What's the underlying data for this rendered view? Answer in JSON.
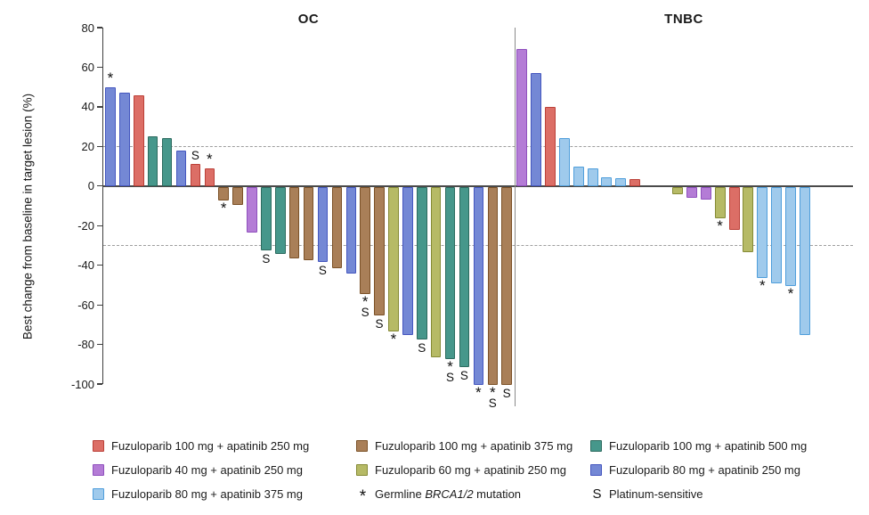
{
  "chart_data": {
    "type": "bar",
    "ylabel": "Best change from baseline in target lesion (%)",
    "ylim": [
      -100,
      80
    ],
    "yticks": [
      80,
      60,
      40,
      20,
      0,
      -20,
      -40,
      -60,
      -80,
      -100
    ],
    "reference_lines": [
      20,
      -30
    ],
    "grid": "off",
    "marker_meanings": {
      "*": "Germline BRCA1/2 mutation",
      "S": "Platinum-sensitive"
    },
    "colors": {
      "red": {
        "fill": "#dc6e66",
        "stroke": "#bb4038"
      },
      "purple": {
        "fill": "#b47cd6",
        "stroke": "#8f50bd"
      },
      "lightblue": {
        "fill": "#9fcaec",
        "stroke": "#4f9edb"
      },
      "brown": {
        "fill": "#a97f58",
        "stroke": "#7b5127"
      },
      "olive": {
        "fill": "#b6ba66",
        "stroke": "#858a35"
      },
      "teal": {
        "fill": "#46978b",
        "stroke": "#2c6b5f"
      },
      "periwinkle": {
        "fill": "#7488d5",
        "stroke": "#4456bf"
      }
    },
    "groups": [
      {
        "label": "OC",
        "bars": [
          {
            "v": 50,
            "c": "periwinkle",
            "a": "*"
          },
          {
            "v": 47,
            "c": "periwinkle"
          },
          {
            "v": 46,
            "c": "red"
          },
          {
            "v": 25,
            "c": "teal"
          },
          {
            "v": 24,
            "c": "teal"
          },
          {
            "v": 18,
            "c": "periwinkle"
          },
          {
            "v": 11,
            "c": "red",
            "a": "S"
          },
          {
            "v": 9,
            "c": "red",
            "a": "*"
          },
          {
            "v": -7,
            "c": "brown",
            "a": "*"
          },
          {
            "v": -9,
            "c": "brown"
          },
          {
            "v": -23,
            "c": "purple"
          },
          {
            "v": -32,
            "c": "teal",
            "a": "S"
          },
          {
            "v": -34,
            "c": "teal"
          },
          {
            "v": -36,
            "c": "brown"
          },
          {
            "v": -37,
            "c": "brown"
          },
          {
            "v": -38,
            "c": "periwinkle",
            "a": "S"
          },
          {
            "v": -41,
            "c": "brown"
          },
          {
            "v": -44,
            "c": "periwinkle"
          },
          {
            "v": -54,
            "c": "brown",
            "a": "*S"
          },
          {
            "v": -65,
            "c": "brown",
            "a": "S"
          },
          {
            "v": -73,
            "c": "olive",
            "a": "*"
          },
          {
            "v": -75,
            "c": "periwinkle"
          },
          {
            "v": -77,
            "c": "teal",
            "a": "S"
          },
          {
            "v": -86,
            "c": "olive"
          },
          {
            "v": -87,
            "c": "teal",
            "a": "*S"
          },
          {
            "v": -91,
            "c": "teal",
            "a": "S"
          },
          {
            "v": -100,
            "c": "periwinkle",
            "a": "*"
          },
          {
            "v": -100,
            "c": "brown",
            "a": "*S"
          },
          {
            "v": -100,
            "c": "brown",
            "a": "S"
          }
        ]
      },
      {
        "label": "TNBC",
        "bars": [
          {
            "v": 69,
            "c": "purple"
          },
          {
            "v": 57,
            "c": "periwinkle"
          },
          {
            "v": 40,
            "c": "red"
          },
          {
            "v": 24,
            "c": "lightblue"
          },
          {
            "v": 10,
            "c": "lightblue"
          },
          {
            "v": 9,
            "c": "lightblue"
          },
          {
            "v": 4.5,
            "c": "lightblue"
          },
          {
            "v": 4,
            "c": "lightblue"
          },
          {
            "v": 3.5,
            "c": "red"
          },
          {
            "v": -4,
            "c": "olive",
            "skip": 2
          },
          {
            "v": -5.5,
            "c": "purple"
          },
          {
            "v": -6.5,
            "c": "purple"
          },
          {
            "v": -16,
            "c": "olive",
            "a": "*"
          },
          {
            "v": -22,
            "c": "red"
          },
          {
            "v": -33,
            "c": "olive"
          },
          {
            "v": -46,
            "c": "lightblue",
            "a": "*"
          },
          {
            "v": -49,
            "c": "lightblue"
          },
          {
            "v": -50,
            "c": "lightblue",
            "a": "*"
          },
          {
            "v": -75,
            "c": "lightblue"
          }
        ]
      }
    ],
    "legend": [
      {
        "color": "red",
        "pre": "Fuzuloparib 100 mg + apatinib 250 mg",
        "italic": "",
        "post": ""
      },
      {
        "color": "brown",
        "pre": "Fuzuloparib 100 mg + apatinib 375 mg",
        "italic": "",
        "post": ""
      },
      {
        "color": "teal",
        "pre": "Fuzuloparib 100 mg + apatinib 500 mg",
        "italic": "",
        "post": ""
      },
      {
        "color": "purple",
        "pre": "Fuzuloparib 40 mg + apatinib 250 mg",
        "italic": "",
        "post": ""
      },
      {
        "color": "olive",
        "pre": "Fuzuloparib 60 mg + apatinib 250 mg",
        "italic": "",
        "post": ""
      },
      {
        "color": "periwinkle",
        "pre": "Fuzuloparib 80 mg + apatinib 250 mg",
        "italic": "",
        "post": ""
      },
      {
        "color": "lightblue",
        "pre": "Fuzuloparib 80 mg + apatinib 375 mg",
        "italic": "",
        "post": ""
      },
      {
        "symbol": "*",
        "pre": "Germline ",
        "italic": "BRCA1/2",
        "post": " mutation"
      },
      {
        "symbol": "S",
        "pre": "Platinum-sensitive",
        "italic": "",
        "post": ""
      }
    ]
  }
}
